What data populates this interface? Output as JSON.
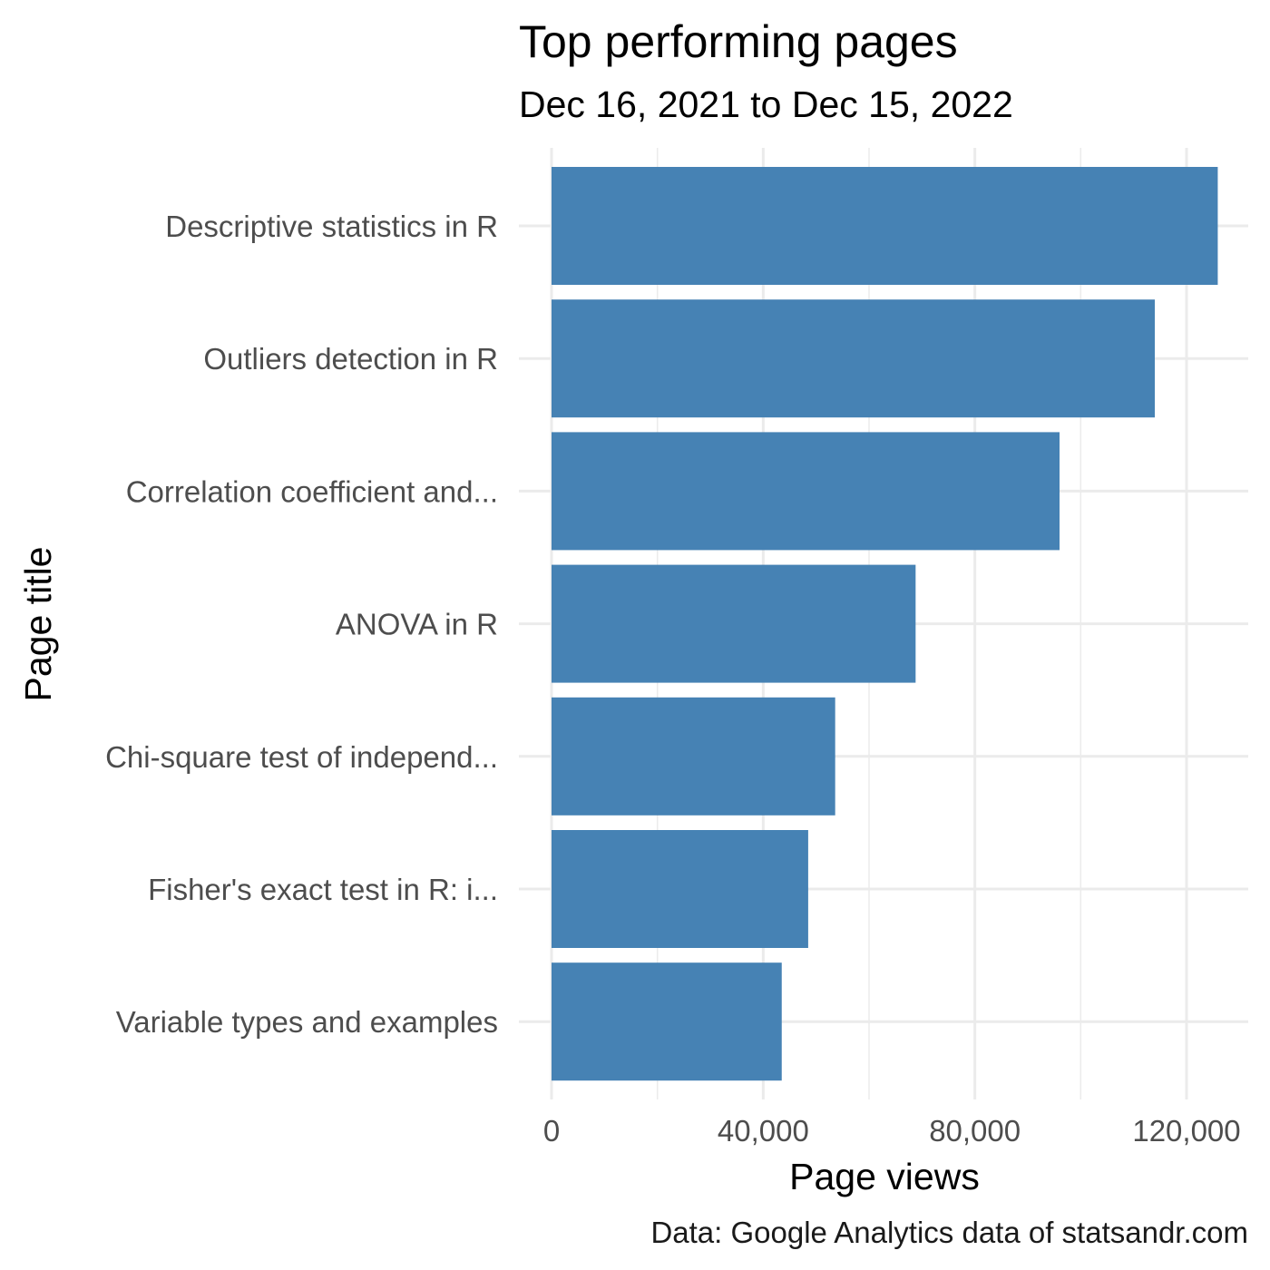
{
  "chart_data": {
    "type": "bar",
    "orientation": "horizontal",
    "title": "Top performing pages",
    "subtitle": "Dec 16, 2021 to Dec 15, 2022",
    "xlabel": "Page views",
    "ylabel": "Page title",
    "caption": "Data: Google Analytics data of statsandr.com",
    "categories": [
      "Descriptive statistics in R",
      "Outliers detection in R",
      "Correlation coefficient and...",
      "ANOVA in R",
      "Chi-square test of independ...",
      "Fisher's exact test in R: i...",
      "Variable types and examples"
    ],
    "values": [
      125900,
      114000,
      96000,
      68800,
      53600,
      48500,
      43500
    ],
    "xlim": [
      0,
      126000
    ],
    "xticks": [
      0,
      40000,
      80000,
      120000
    ],
    "xtick_labels": [
      "0",
      "40,000",
      "80,000",
      "120,000"
    ],
    "bar_color": "#4682B4",
    "grid": true,
    "legend": "none"
  }
}
